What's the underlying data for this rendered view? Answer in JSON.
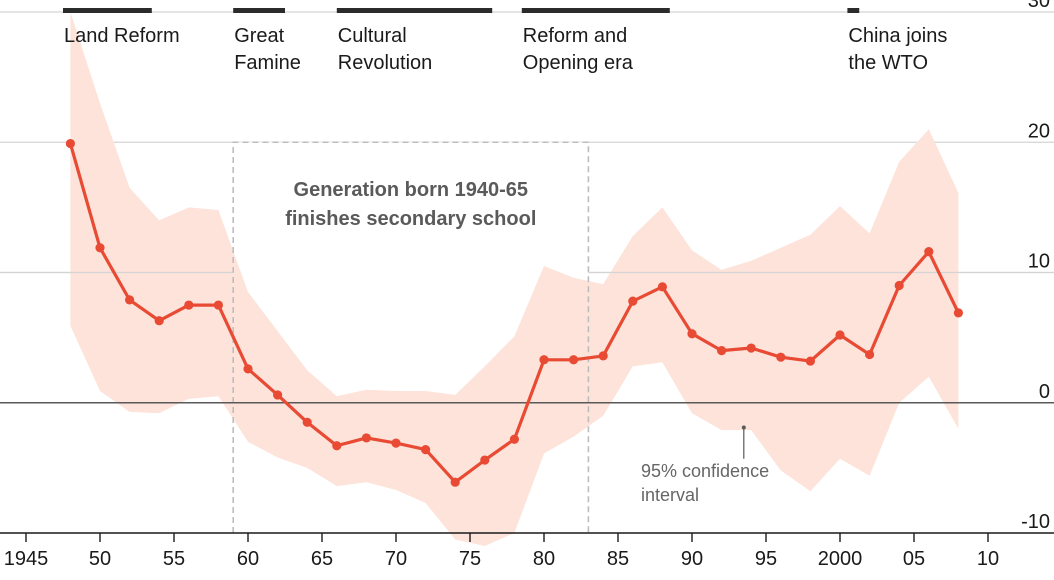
{
  "chart_data": {
    "type": "line",
    "title": "",
    "xlabel": "",
    "ylabel": "",
    "xlim": [
      1943.7,
      2012.5
    ],
    "ylim": [
      -10,
      30
    ],
    "x_ticks": [
      1945,
      1950,
      1955,
      1960,
      1965,
      1970,
      1975,
      1980,
      1985,
      1990,
      1995,
      2000,
      2005,
      2010
    ],
    "x_tick_labels": [
      "1945",
      "50",
      "55",
      "60",
      "65",
      "70",
      "75",
      "80",
      "85",
      "90",
      "95",
      "2000",
      "05",
      "10"
    ],
    "y_ticks": [
      -10,
      0,
      10,
      20,
      30
    ],
    "y_tick_labels": [
      "-10",
      "0",
      "10",
      "20",
      "30"
    ],
    "grid": "horizontal",
    "colors": {
      "line": "#e84a33",
      "band": "#fde3da",
      "grid": "#d4d4d4",
      "zero_line": "#595959",
      "era_bar": "#2b2b2b",
      "dashed_box": "#bdbdbd",
      "annotation": "#595959"
    },
    "series": [
      {
        "x": [
          1948,
          1950,
          1952,
          1954,
          1956,
          1958,
          1960,
          1962,
          1964,
          1966,
          1968,
          1970,
          1972,
          1974,
          1976,
          1978,
          1980,
          1982,
          1984,
          1986,
          1988,
          1990,
          1992,
          1994,
          1996,
          1998,
          2000,
          2002,
          2004,
          2006,
          2008
        ],
        "y": [
          19.9,
          11.9,
          7.9,
          6.3,
          7.5,
          7.5,
          2.6,
          0.6,
          -1.5,
          -3.3,
          -2.7,
          -3.1,
          -3.6,
          -6.1,
          -4.4,
          -2.8,
          3.3,
          3.3,
          3.6,
          7.8,
          8.9,
          5.3,
          4.0,
          4.2,
          3.5,
          3.2,
          5.2,
          3.7,
          9.0,
          11.6,
          6.9
        ]
      }
    ],
    "confidence_band": {
      "label": "95% confidence interval",
      "label_lines": [
        "95% confidence",
        "interval"
      ],
      "x": [
        1948,
        1950,
        1952,
        1954,
        1956,
        1958,
        1960,
        1962,
        1964,
        1966,
        1968,
        1970,
        1972,
        1974,
        1976,
        1978,
        1980,
        1982,
        1984,
        1986,
        1988,
        1990,
        1992,
        1994,
        1996,
        1998,
        2000,
        2002,
        2004,
        2006,
        2008
      ],
      "upper": [
        30,
        23,
        16.5,
        14.0,
        15.0,
        14.8,
        8.5,
        5.5,
        2.5,
        0.5,
        1.0,
        0.9,
        0.9,
        0.6,
        2.8,
        5.1,
        10.5,
        9.6,
        9.1,
        12.8,
        15.0,
        11.7,
        10.2,
        10.9,
        11.9,
        12.9,
        15.1,
        13.0,
        18.5,
        21.0,
        16.1
      ],
      "lower": [
        5.9,
        0.9,
        -0.7,
        -0.8,
        0.3,
        0.5,
        -3.0,
        -4.2,
        -5.0,
        -6.4,
        -6.1,
        -6.7,
        -7.7,
        -10.5,
        -11.0,
        -10.0,
        -3.9,
        -2.6,
        -1.0,
        2.8,
        3.1,
        -0.8,
        -2.1,
        -2.1,
        -5.2,
        -6.8,
        -4.3,
        -5.6,
        0.0,
        2.0,
        -2.0
      ]
    },
    "eras": [
      {
        "label_lines": [
          "Land Reform"
        ],
        "start": 1947.5,
        "end": 1953.5
      },
      {
        "label_lines": [
          "Great",
          "Famine"
        ],
        "start": 1959.0,
        "end": 1962.5
      },
      {
        "label_lines": [
          "Cultural",
          "Revolution"
        ],
        "start": 1966.0,
        "end": 1976.5
      },
      {
        "label_lines": [
          "Reform and",
          "Opening era"
        ],
        "start": 1978.5,
        "end": 1988.5
      },
      {
        "label_lines": [
          "China joins",
          "the WTO"
        ],
        "start": 2000.5,
        "end": 2001.3
      }
    ],
    "annotation_box": {
      "x_start": 1959,
      "x_end": 1983,
      "y_top": 20,
      "label_lines": [
        "Generation born 1940-65",
        "finishes secondary school"
      ]
    }
  }
}
